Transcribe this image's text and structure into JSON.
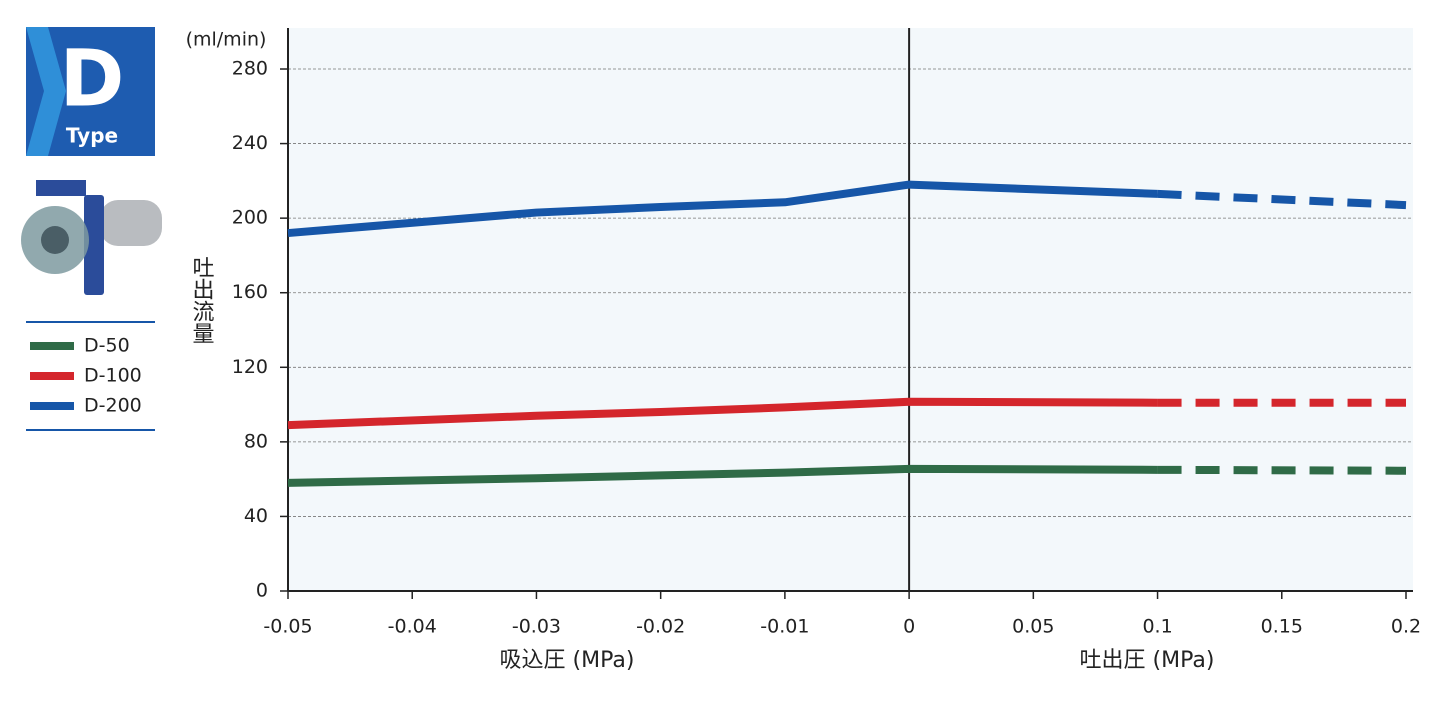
{
  "badge": {
    "letter": "D",
    "label": "Type"
  },
  "chart_data": {
    "type": "line",
    "y_unit": "(ml/min)",
    "ylabel": "吐出流量",
    "xlabel_left": "吸込圧 (MPa)",
    "xlabel_right": "吐出圧 (MPa)",
    "x": [
      -0.05,
      -0.03,
      -0.02,
      -0.01,
      0,
      0.1,
      0.2
    ],
    "series": [
      {
        "name": "D-50",
        "color": "#2f6b47",
        "values": [
          58,
          60.5,
          62,
          63.5,
          65.5,
          65,
          64.5
        ]
      },
      {
        "name": "D-100",
        "color": "#d4262c",
        "values": [
          89,
          94,
          96,
          98.5,
          101.5,
          101,
          101
        ]
      },
      {
        "name": "D-200",
        "color": "#1656a8",
        "values": [
          192,
          203,
          206,
          208.5,
          218,
          213,
          207
        ]
      }
    ],
    "dashed_after": 0.1,
    "xlim": [
      -0.05,
      0.2
    ],
    "xticks": [
      -0.05,
      -0.04,
      -0.03,
      -0.02,
      -0.01,
      0,
      0.05,
      0.1,
      0.15,
      0.2
    ],
    "ylim": [
      0,
      302
    ],
    "yticks": [
      0,
      40,
      80,
      120,
      160,
      200,
      240,
      280
    ],
    "grid": true
  }
}
